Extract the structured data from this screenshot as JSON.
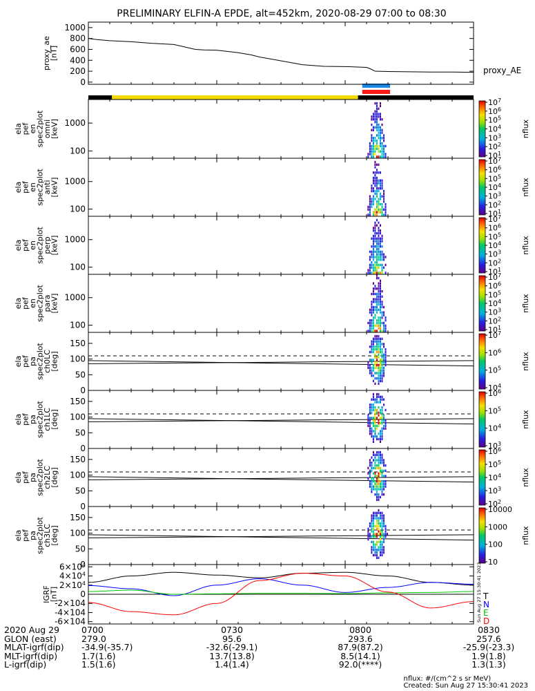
{
  "title": "PRELIMINARY ELFIN-A EPDE, alt=452km, 2020-08-29 07:00 to 08:30",
  "chart_data": [
    {
      "type": "line",
      "panel": "proxy_ae",
      "ylabel_lines": [
        "proxy_ae",
        "[nT]"
      ],
      "right_label": "proxy_AE",
      "ylim": [
        -40,
        1100
      ],
      "yticks": [
        "0",
        "200",
        "400",
        "600",
        "800",
        "1000"
      ],
      "ytick_values": [
        0,
        200,
        400,
        600,
        800,
        1000
      ],
      "x_minutes": [
        0,
        1,
        2,
        5,
        10,
        15,
        20,
        25,
        26,
        27,
        30,
        35,
        38,
        40,
        45,
        50,
        55,
        60,
        65,
        66,
        67,
        70,
        75,
        80,
        85,
        90
      ],
      "values": [
        800,
        790,
        780,
        760,
        740,
        710,
        690,
        600,
        595,
        590,
        585,
        540,
        500,
        460,
        390,
        320,
        290,
        285,
        270,
        240,
        200,
        195,
        190,
        185,
        185,
        180
      ]
    },
    {
      "type": "heatmap",
      "panel": "omni",
      "ylabel_lines": [
        "ela",
        "pef",
        "en",
        "spec2plot",
        "omni",
        "[keV]"
      ],
      "yticks": [
        "100",
        "1000"
      ],
      "colorbar_label": "nflux",
      "colorbar_ticks": [
        "101",
        "102",
        "103",
        "104",
        "105",
        "106",
        "107"
      ]
    },
    {
      "type": "heatmap",
      "panel": "anti",
      "ylabel_lines": [
        "ela",
        "pef",
        "en",
        "spec2plot",
        "anti",
        "[keV]"
      ],
      "yticks": [
        "100",
        "1000"
      ],
      "colorbar_label": "nflux",
      "colorbar_ticks": [
        "101",
        "102",
        "103",
        "104",
        "105",
        "106",
        "107"
      ]
    },
    {
      "type": "heatmap",
      "panel": "perp",
      "ylabel_lines": [
        "ela",
        "pef",
        "en",
        "spec2plot",
        "perp",
        "[keV]"
      ],
      "yticks": [
        "100",
        "1000"
      ],
      "colorbar_label": "nflux",
      "colorbar_ticks": [
        "101",
        "102",
        "103",
        "104",
        "105",
        "106",
        "107"
      ]
    },
    {
      "type": "heatmap",
      "panel": "para",
      "ylabel_lines": [
        "ela",
        "pef",
        "en",
        "spec2plot",
        "para",
        "[keV]"
      ],
      "yticks": [
        "100",
        "1000"
      ],
      "colorbar_label": "nflux",
      "colorbar_ticks": [
        "101",
        "102",
        "103",
        "104",
        "105",
        "106",
        "107"
      ]
    },
    {
      "type": "heatmap",
      "panel": "ch0LC",
      "ylabel_lines": [
        "ela",
        "pef",
        "pa",
        "spec2plot",
        "ch0LC",
        "[deg]"
      ],
      "yticks": [
        "0",
        "50",
        "100",
        "150"
      ],
      "colorbar_label": "nflux",
      "colorbar_ticks": [
        "104",
        "105",
        "106",
        "107"
      ]
    },
    {
      "type": "heatmap",
      "panel": "ch1LC",
      "ylabel_lines": [
        "ela",
        "pef",
        "pa",
        "spec2plot",
        "ch1LC",
        "[deg]"
      ],
      "yticks": [
        "0",
        "50",
        "100",
        "150"
      ],
      "colorbar_label": "nflux",
      "colorbar_ticks": [
        "103",
        "104",
        "105",
        "106"
      ]
    },
    {
      "type": "heatmap",
      "panel": "ch2LC",
      "ylabel_lines": [
        "ela",
        "pef",
        "pa",
        "spec2plot",
        "ch2LC",
        "[deg]"
      ],
      "yticks": [
        "0",
        "50",
        "100",
        "150"
      ],
      "colorbar_label": "nflux",
      "colorbar_ticks": [
        "102",
        "103",
        "104",
        "105",
        "106"
      ]
    },
    {
      "type": "heatmap",
      "panel": "ch3LC",
      "ylabel_lines": [
        "ela",
        "pef",
        "pa",
        "spec2plot",
        "ch3LC",
        "[deg]"
      ],
      "yticks": [
        "0",
        "50",
        "100",
        "150"
      ],
      "colorbar_label": "nflux",
      "colorbar_ticks": [
        "10",
        "100",
        "1000",
        "10000"
      ]
    },
    {
      "type": "line",
      "panel": "IGRF",
      "ylabel_lines": [
        "IGRF",
        "[nT]"
      ],
      "ylim": [
        -65000,
        65000
      ],
      "yticks": [
        "-6×104",
        "-4×104",
        "-2×104",
        "0",
        "2×104",
        "4×104",
        "6×104"
      ],
      "ytick_values": [
        -60000,
        -40000,
        -20000,
        0,
        20000,
        40000,
        60000
      ],
      "side_text": "Sun Aug 27 15:30:41 2023",
      "x_minutes": [
        0,
        10,
        20,
        30,
        40,
        50,
        60,
        70,
        80,
        90
      ],
      "series": [
        {
          "name": "T",
          "color": "#000000",
          "values": [
            26000,
            40000,
            48000,
            42000,
            36000,
            46000,
            48000,
            40000,
            26000,
            20000
          ]
        },
        {
          "name": "N",
          "color": "#0000ff",
          "values": [
            19000,
            12000,
            -3000,
            20000,
            34000,
            20000,
            4000,
            15000,
            26000,
            22000
          ]
        },
        {
          "name": "E",
          "color": "#00c800",
          "values": [
            6000,
            9000,
            0,
            1000,
            2000,
            2000,
            1500,
            3000,
            4000,
            6000
          ]
        },
        {
          "name": "D",
          "color": "#ff0000",
          "values": [
            -18000,
            -38000,
            -45000,
            -20000,
            30000,
            46000,
            40000,
            5000,
            -30000,
            -16000
          ]
        }
      ]
    }
  ],
  "time_axis": {
    "labels": [
      "0700",
      "0730",
      "0800",
      "0830"
    ],
    "footer_rows": [
      {
        "label": "2020 Aug 29",
        "values": [
          "0700",
          "0730",
          "0800",
          "0830"
        ]
      },
      {
        "label": "GLON (east)",
        "values": [
          "279.0",
          "95.6",
          "293.6",
          "257.6"
        ]
      },
      {
        "label": "MLAT-igrf(dip)",
        "values": [
          "-34.9(-35.7)",
          "-32.6(-29.1)",
          "87.9(87.2)",
          "-25.9(-23.3)"
        ]
      },
      {
        "label": "MLT-igrf(dip)",
        "values": [
          "1.7(1.6)",
          "13.7(13.8)",
          "8.5(14.1)",
          "1.9(1.8)"
        ]
      },
      {
        "label": "L-igrf(dip)",
        "values": [
          "1.5(1.6)",
          "1.4(1.4)",
          "92.0(****)",
          "1.3(1.3)"
        ]
      }
    ]
  },
  "notes": {
    "units": "nflux: #/(cm^2 s sr MeV)",
    "created": "Created: Sun Aug 27 15:30:41 2023"
  }
}
